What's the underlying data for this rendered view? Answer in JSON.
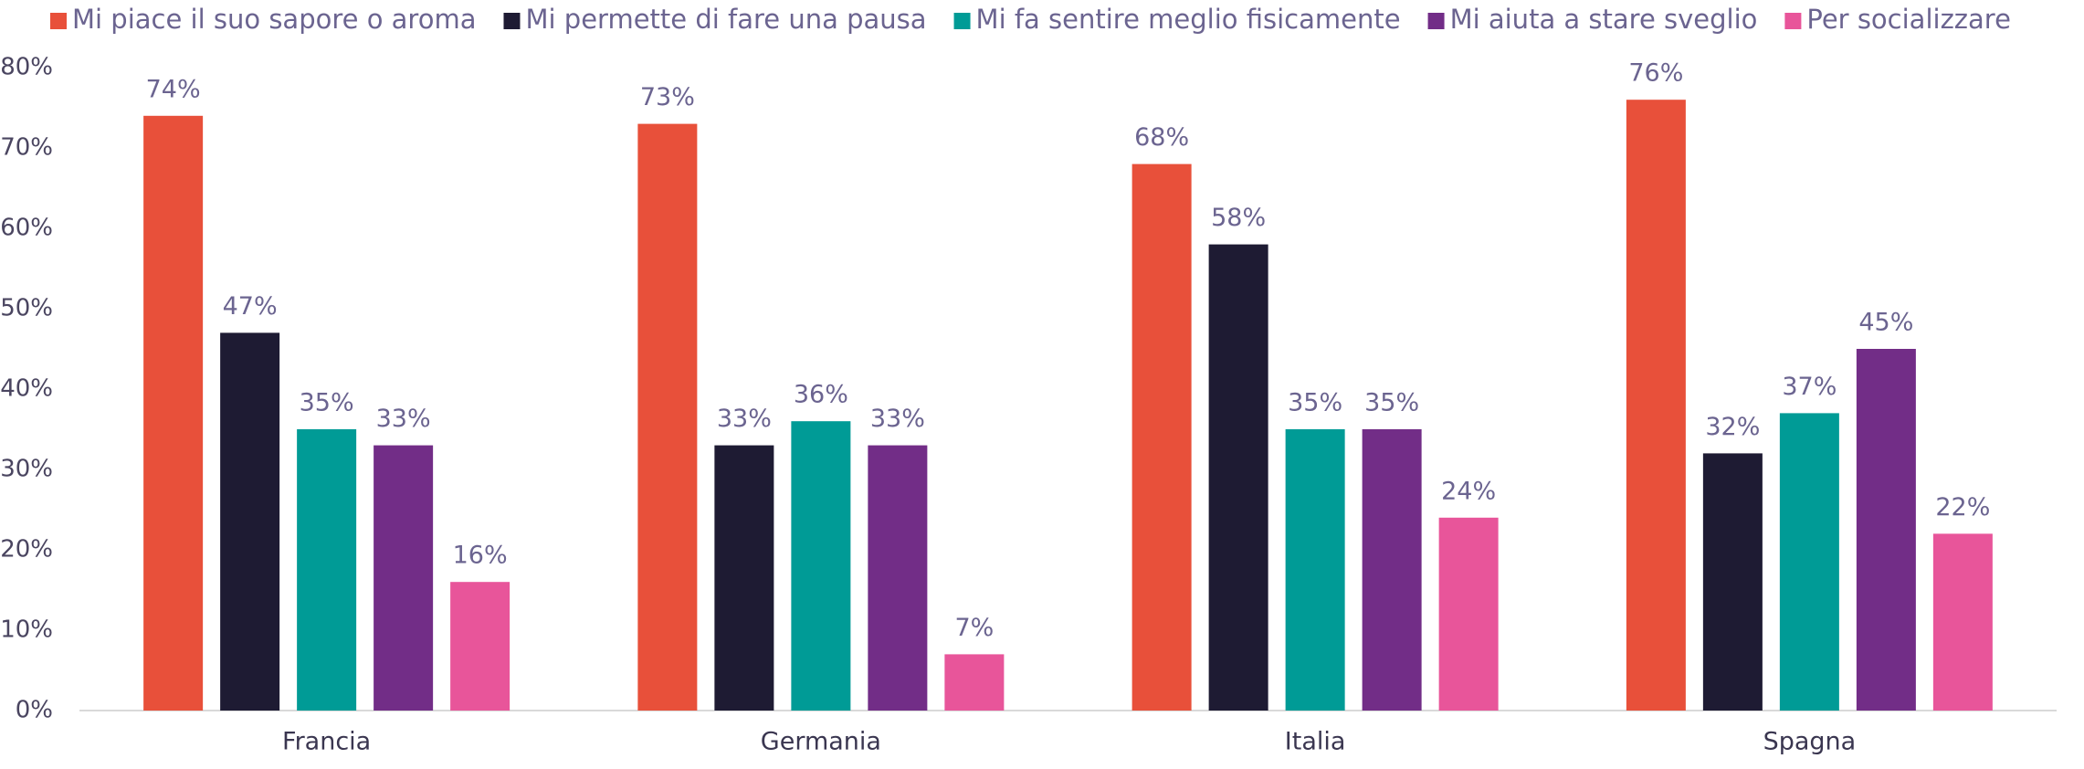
{
  "chart_data": {
    "type": "bar",
    "categories": [
      "Francia",
      "Germania",
      "Italia",
      "Spagna"
    ],
    "series": [
      {
        "name": "Mi piace il suo sapore o aroma",
        "color": "#e8503a",
        "values": [
          74,
          73,
          68,
          76
        ],
        "value_labels": [
          "74%",
          "73%",
          "68%",
          "76%"
        ]
      },
      {
        "name": "Mi permette di fare una pausa",
        "color": "#1e1b33",
        "values": [
          47,
          33,
          58,
          32
        ],
        "value_labels": [
          "47%",
          "33%",
          "58%",
          "32%"
        ]
      },
      {
        "name": "Mi fa sentire meglio fisicamente",
        "color": "#009b96",
        "values": [
          35,
          36,
          35,
          37
        ],
        "value_labels": [
          "35%",
          "36%",
          "35%",
          "37%"
        ]
      },
      {
        "name": "Mi aiuta a stare sveglio",
        "color": "#722d87",
        "values": [
          33,
          33,
          35,
          45
        ],
        "value_labels": [
          "33%",
          "33%",
          "35%",
          "45%"
        ]
      },
      {
        "name": "Per socializzare",
        "color": "#e8559a",
        "values": [
          16,
          7,
          24,
          22
        ],
        "value_labels": [
          "16%",
          "7%",
          "24%",
          "22%"
        ]
      }
    ],
    "ylim": [
      0,
      80
    ],
    "yticks": [
      {
        "value": 0,
        "label": "0%"
      },
      {
        "value": 10,
        "label": "10%"
      },
      {
        "value": 20,
        "label": "20%"
      },
      {
        "value": 30,
        "label": "30%"
      },
      {
        "value": 40,
        "label": "40%"
      },
      {
        "value": 50,
        "label": "50%"
      },
      {
        "value": 60,
        "label": "60%"
      },
      {
        "value": 70,
        "label": "70%"
      },
      {
        "value": 80,
        "label": "80%"
      }
    ],
    "grid": false,
    "legend": "top"
  }
}
